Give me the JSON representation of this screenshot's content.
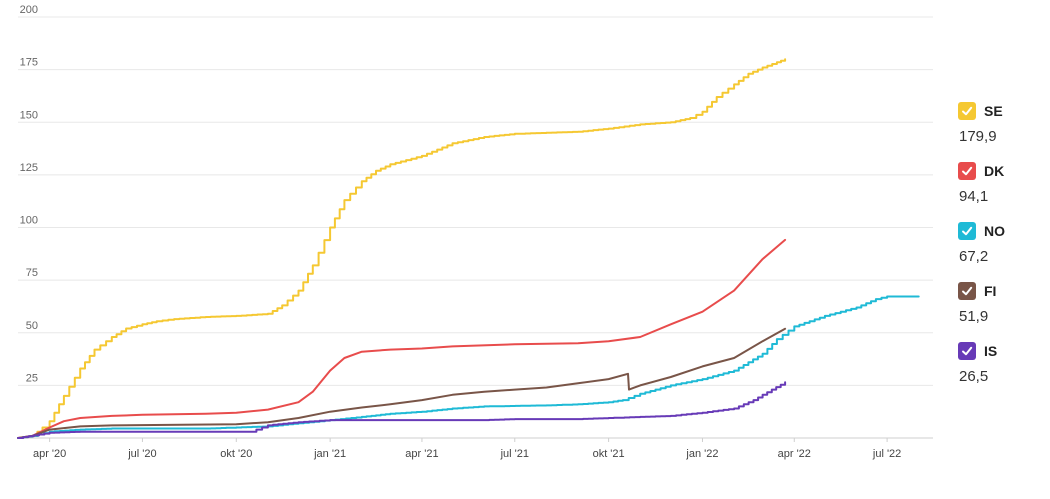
{
  "chart_data": {
    "type": "line",
    "x_axis": {
      "type": "date",
      "range": [
        "2020-03-01",
        "2022-08-15"
      ],
      "ticks": [
        {
          "date": "2020-04-01",
          "label": "apr '20"
        },
        {
          "date": "2020-07-01",
          "label": "jul '20"
        },
        {
          "date": "2020-10-01",
          "label": "okt '20"
        },
        {
          "date": "2021-01-01",
          "label": "jan '21"
        },
        {
          "date": "2021-04-01",
          "label": "apr '21"
        },
        {
          "date": "2021-07-01",
          "label": "jul '21"
        },
        {
          "date": "2021-10-01",
          "label": "okt '21"
        },
        {
          "date": "2022-01-01",
          "label": "jan '22"
        },
        {
          "date": "2022-04-01",
          "label": "apr '22"
        },
        {
          "date": "2022-07-01",
          "label": "jul '22"
        }
      ]
    },
    "y_axis": {
      "range": [
        0,
        200
      ],
      "ticks": [
        0,
        25,
        50,
        75,
        100,
        125,
        150,
        175,
        200
      ],
      "tick_labels": [
        "",
        "25",
        "50",
        "75",
        "100",
        "125",
        "150",
        "175",
        "200"
      ]
    },
    "grid": true,
    "legend_position": "right",
    "series": [
      {
        "name": "SE",
        "value_label": "179,9",
        "color": "#f5c832",
        "step": true,
        "points": [
          [
            "2020-03-01",
            0
          ],
          [
            "2020-03-15",
            1
          ],
          [
            "2020-03-25",
            5
          ],
          [
            "2020-04-01",
            8
          ],
          [
            "2020-04-15",
            20
          ],
          [
            "2020-05-01",
            33
          ],
          [
            "2020-05-15",
            42
          ],
          [
            "2020-06-01",
            48
          ],
          [
            "2020-06-15",
            52
          ],
          [
            "2020-07-01",
            54
          ],
          [
            "2020-07-15",
            55.5
          ],
          [
            "2020-08-01",
            56.5
          ],
          [
            "2020-09-01",
            57.5
          ],
          [
            "2020-10-01",
            58
          ],
          [
            "2020-11-01",
            59
          ],
          [
            "2020-11-15",
            63
          ],
          [
            "2020-12-01",
            70
          ],
          [
            "2020-12-15",
            82
          ],
          [
            "2021-01-01",
            100
          ],
          [
            "2021-01-15",
            113
          ],
          [
            "2021-02-01",
            122
          ],
          [
            "2021-02-15",
            127
          ],
          [
            "2021-03-01",
            130
          ],
          [
            "2021-04-01",
            134
          ],
          [
            "2021-05-01",
            140
          ],
          [
            "2021-06-01",
            143
          ],
          [
            "2021-07-01",
            144.5
          ],
          [
            "2021-08-01",
            145
          ],
          [
            "2021-09-01",
            145.5
          ],
          [
            "2021-10-01",
            147
          ],
          [
            "2021-11-01",
            149
          ],
          [
            "2021-12-01",
            150
          ],
          [
            "2021-12-20",
            152
          ],
          [
            "2022-01-01",
            155
          ],
          [
            "2022-01-15",
            162
          ],
          [
            "2022-02-01",
            168
          ],
          [
            "2022-02-15",
            173
          ],
          [
            "2022-03-01",
            176
          ],
          [
            "2022-03-15",
            178.5
          ],
          [
            "2022-03-23",
            179.9
          ]
        ]
      },
      {
        "name": "DK",
        "value_label": "94,1",
        "color": "#e84c4c",
        "step": false,
        "points": [
          [
            "2020-03-01",
            0
          ],
          [
            "2020-03-15",
            1
          ],
          [
            "2020-04-01",
            5
          ],
          [
            "2020-04-15",
            8
          ],
          [
            "2020-05-01",
            9.5
          ],
          [
            "2020-06-01",
            10.5
          ],
          [
            "2020-07-01",
            11
          ],
          [
            "2020-09-01",
            11.5
          ],
          [
            "2020-10-01",
            12
          ],
          [
            "2020-11-01",
            13.5
          ],
          [
            "2020-12-01",
            17
          ],
          [
            "2020-12-15",
            22
          ],
          [
            "2021-01-01",
            32
          ],
          [
            "2021-01-15",
            38
          ],
          [
            "2021-02-01",
            41
          ],
          [
            "2021-03-01",
            42
          ],
          [
            "2021-04-01",
            42.5
          ],
          [
            "2021-05-01",
            43.5
          ],
          [
            "2021-07-01",
            44.5
          ],
          [
            "2021-09-01",
            45
          ],
          [
            "2021-10-01",
            46
          ],
          [
            "2021-11-01",
            48
          ],
          [
            "2021-12-01",
            54
          ],
          [
            "2022-01-01",
            60
          ],
          [
            "2022-02-01",
            70
          ],
          [
            "2022-03-01",
            85
          ],
          [
            "2022-03-23",
            94.1
          ]
        ]
      },
      {
        "name": "NO",
        "value_label": "67,2",
        "color": "#1fbad6",
        "step": true,
        "points": [
          [
            "2020-03-01",
            0
          ],
          [
            "2020-03-15",
            1
          ],
          [
            "2020-04-01",
            3
          ],
          [
            "2020-05-01",
            4
          ],
          [
            "2020-06-01",
            4.5
          ],
          [
            "2020-09-01",
            4.5
          ],
          [
            "2020-10-01",
            5
          ],
          [
            "2020-11-01",
            5.5
          ],
          [
            "2020-12-01",
            7
          ],
          [
            "2021-01-01",
            8.5
          ],
          [
            "2021-02-01",
            10
          ],
          [
            "2021-03-01",
            11.5
          ],
          [
            "2021-04-01",
            12.5
          ],
          [
            "2021-05-01",
            14
          ],
          [
            "2021-06-01",
            15
          ],
          [
            "2021-08-01",
            15.5
          ],
          [
            "2021-09-01",
            16
          ],
          [
            "2021-10-01",
            17
          ],
          [
            "2021-10-15",
            18
          ],
          [
            "2021-11-01",
            21
          ],
          [
            "2021-12-01",
            25
          ],
          [
            "2022-01-01",
            28
          ],
          [
            "2022-02-01",
            32
          ],
          [
            "2022-03-01",
            40
          ],
          [
            "2022-03-15",
            47
          ],
          [
            "2022-04-01",
            53
          ],
          [
            "2022-05-01",
            58
          ],
          [
            "2022-06-01",
            62
          ],
          [
            "2022-06-20",
            66
          ],
          [
            "2022-07-01",
            67.2
          ],
          [
            "2022-08-01",
            67.2
          ]
        ]
      },
      {
        "name": "FI",
        "value_label": "51,9",
        "color": "#795548",
        "step": false,
        "points": [
          [
            "2020-03-01",
            0
          ],
          [
            "2020-03-15",
            1
          ],
          [
            "2020-04-01",
            4
          ],
          [
            "2020-05-01",
            5.5
          ],
          [
            "2020-06-01",
            6
          ],
          [
            "2020-10-01",
            6.5
          ],
          [
            "2020-11-01",
            7.5
          ],
          [
            "2020-12-01",
            9.5
          ],
          [
            "2021-01-01",
            12.5
          ],
          [
            "2021-02-01",
            14.5
          ],
          [
            "2021-03-01",
            16
          ],
          [
            "2021-04-01",
            18
          ],
          [
            "2021-05-01",
            20.5
          ],
          [
            "2021-06-01",
            22
          ],
          [
            "2021-07-01",
            23
          ],
          [
            "2021-08-01",
            24
          ],
          [
            "2021-09-01",
            26
          ],
          [
            "2021-10-01",
            28
          ],
          [
            "2021-10-20",
            30.5
          ],
          [
            "2021-10-21",
            23
          ],
          [
            "2021-11-01",
            25
          ],
          [
            "2021-12-01",
            29
          ],
          [
            "2022-01-01",
            34
          ],
          [
            "2022-02-01",
            38
          ],
          [
            "2022-03-01",
            46
          ],
          [
            "2022-03-23",
            51.9
          ]
        ]
      },
      {
        "name": "IS",
        "value_label": "26,5",
        "color": "#673ab7",
        "step": true,
        "points": [
          [
            "2020-03-01",
            0
          ],
          [
            "2020-04-01",
            2.5
          ],
          [
            "2020-05-01",
            3
          ],
          [
            "2020-10-15",
            3
          ],
          [
            "2020-11-01",
            6
          ],
          [
            "2020-12-01",
            7.5
          ],
          [
            "2021-01-01",
            8.5
          ],
          [
            "2021-06-01",
            8.5
          ],
          [
            "2021-07-01",
            9
          ],
          [
            "2021-09-01",
            9
          ],
          [
            "2021-10-01",
            9.5
          ],
          [
            "2021-11-01",
            10
          ],
          [
            "2021-12-01",
            10.5
          ],
          [
            "2022-01-01",
            12
          ],
          [
            "2022-02-01",
            14
          ],
          [
            "2022-02-20",
            18
          ],
          [
            "2022-03-10",
            23
          ],
          [
            "2022-03-23",
            26.5
          ]
        ]
      }
    ]
  }
}
